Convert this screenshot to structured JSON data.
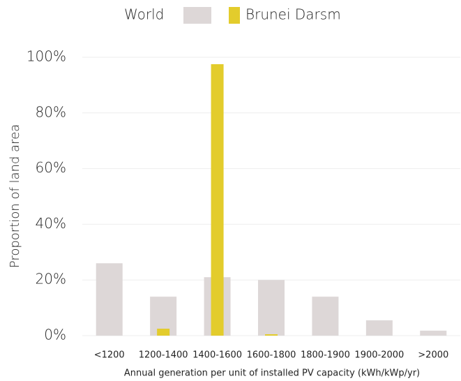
{
  "chart_data": {
    "type": "bar",
    "x_label": "Annual generation per unit of installed PV capacity (kWh/kWp/yr)",
    "y_label": "Proportion of land area",
    "categories": [
      "<1200",
      "1200-1400",
      "1400-1600",
      "1600-1800",
      "1800-1900",
      "1900-2000",
      ">2000"
    ],
    "series": [
      {
        "name": "World",
        "color": "#ddd7d7",
        "values": [
          26,
          14,
          21,
          20,
          14,
          5.5,
          1.8
        ]
      },
      {
        "name": "Brunei Darsm",
        "color": "#e3cc2c",
        "values": [
          0,
          2.5,
          97.5,
          0.5,
          0,
          0,
          0
        ]
      }
    ],
    "ylim": [
      0,
      100
    ],
    "yticks": [
      {
        "value": 0,
        "label": "0%"
      },
      {
        "value": 20,
        "label": "20%"
      },
      {
        "value": 40,
        "label": "40%"
      },
      {
        "value": 60,
        "label": "60%"
      },
      {
        "value": 80,
        "label": "80%"
      },
      {
        "value": 100,
        "label": "100%"
      }
    ],
    "grid": true
  }
}
